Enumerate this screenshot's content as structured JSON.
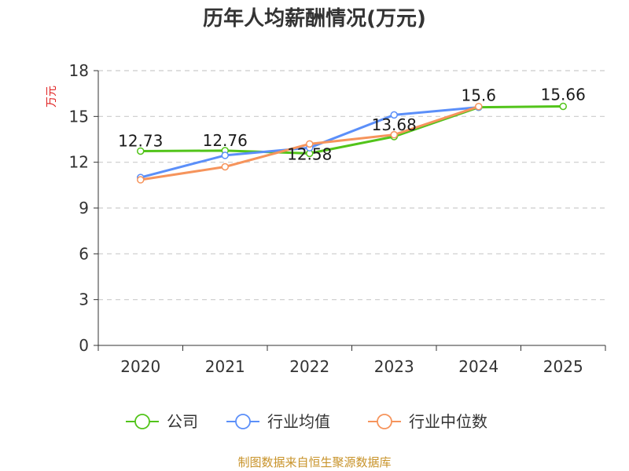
{
  "chart_data": {
    "type": "line",
    "title": "历年人均薪酬情况(万元)",
    "ylabel": "万元",
    "xlabel": "",
    "categories": [
      "2020",
      "2021",
      "2022",
      "2023",
      "2024",
      "2025"
    ],
    "ylim": [
      0,
      18
    ],
    "yticks": [
      0,
      3,
      6,
      9,
      12,
      15,
      18
    ],
    "grid": true,
    "legend_position": "bottom",
    "series": [
      {
        "name": "公司",
        "color": "#52c41a",
        "values": [
          12.73,
          12.76,
          12.58,
          13.68,
          15.6,
          15.66
        ],
        "show_labels": true
      },
      {
        "name": "行业均值",
        "color": "#5b8ff9",
        "values": [
          11.0,
          12.45,
          12.95,
          15.1,
          15.6,
          null
        ],
        "show_labels": false
      },
      {
        "name": "行业中位数",
        "color": "#f6945c",
        "values": [
          10.85,
          11.7,
          13.2,
          13.8,
          15.65,
          null
        ],
        "show_labels": false
      }
    ],
    "data_labels": [
      "12.73",
      "12.76",
      "12.58",
      "13.68",
      "15.6",
      "15.66"
    ]
  },
  "source": "制图数据来自恒生聚源数据库"
}
